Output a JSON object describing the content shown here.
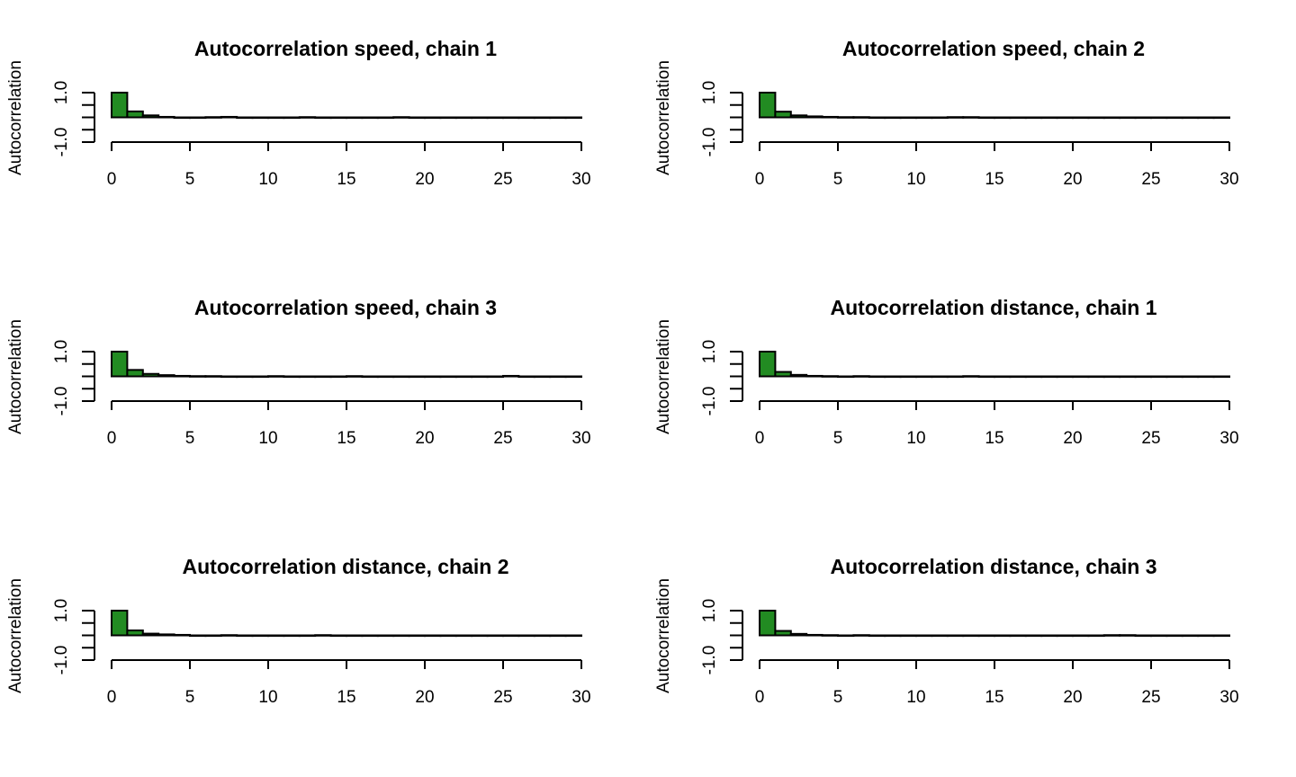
{
  "colors": {
    "bar_fill": "#228b22",
    "stroke": "#000000",
    "background": "#ffffff"
  },
  "chart_data": [
    {
      "type": "bar",
      "title": "Autocorrelation speed, chain 1",
      "xlabel": "",
      "ylabel": "Autocorrelation",
      "xlim": [
        0,
        30
      ],
      "ylim": [
        -1,
        1
      ],
      "xticks": [
        "0",
        "5",
        "10",
        "15",
        "20",
        "25",
        "30"
      ],
      "yticks": [
        "-1.0",
        "1.0"
      ],
      "lags": [
        0,
        1,
        2,
        3,
        4,
        5,
        6,
        7,
        8,
        9,
        10,
        11,
        12,
        13,
        14,
        15,
        16,
        17,
        18,
        19,
        20,
        21,
        22,
        23,
        24,
        25,
        26,
        27,
        28,
        29
      ],
      "values": [
        1.0,
        0.24,
        0.08,
        0.02,
        -0.02,
        0.0,
        0.01,
        0.02,
        0.0,
        -0.01,
        -0.02,
        0.0,
        0.01,
        0.0,
        0.0,
        0.0,
        0.0,
        -0.01,
        0.01,
        0.0,
        -0.01,
        0.0,
        0.0,
        -0.01,
        0.0,
        0.0,
        -0.01,
        0.0,
        0.0,
        0.0
      ]
    },
    {
      "type": "bar",
      "title": "Autocorrelation speed, chain 2",
      "xlabel": "",
      "ylabel": "Autocorrelation",
      "xlim": [
        0,
        30
      ],
      "ylim": [
        -1,
        1
      ],
      "xticks": [
        "0",
        "5",
        "10",
        "15",
        "20",
        "25",
        "30"
      ],
      "yticks": [
        "-1.0",
        "1.0"
      ],
      "lags": [
        0,
        1,
        2,
        3,
        4,
        5,
        6,
        7,
        8,
        9,
        10,
        11,
        12,
        13,
        14,
        15,
        16,
        17,
        18,
        19,
        20,
        21,
        22,
        23,
        24,
        25,
        26,
        27,
        28,
        29
      ],
      "values": [
        1.0,
        0.23,
        0.08,
        0.04,
        0.02,
        0.01,
        0.01,
        0.0,
        -0.01,
        -0.02,
        -0.01,
        0.0,
        0.01,
        0.01,
        0.0,
        0.0,
        0.0,
        0.0,
        0.0,
        0.0,
        0.0,
        0.0,
        0.0,
        0.0,
        0.0,
        0.0,
        0.0,
        0.0,
        -0.01,
        0.0
      ]
    },
    {
      "type": "bar",
      "title": "Autocorrelation speed, chain 3",
      "xlabel": "",
      "ylabel": "Autocorrelation",
      "xlim": [
        0,
        30
      ],
      "ylim": [
        -1,
        1
      ],
      "xticks": [
        "0",
        "5",
        "10",
        "15",
        "20",
        "25",
        "30"
      ],
      "yticks": [
        "-1.0",
        "1.0"
      ],
      "lags": [
        0,
        1,
        2,
        3,
        4,
        5,
        6,
        7,
        8,
        9,
        10,
        11,
        12,
        13,
        14,
        15,
        16,
        17,
        18,
        19,
        20,
        21,
        22,
        23,
        24,
        25,
        26,
        27,
        28,
        29
      ],
      "values": [
        1.0,
        0.26,
        0.1,
        0.05,
        0.02,
        0.01,
        0.01,
        0.0,
        0.0,
        0.0,
        0.01,
        0.0,
        0.0,
        0.0,
        0.0,
        0.01,
        -0.01,
        0.0,
        -0.01,
        0.0,
        0.0,
        -0.01,
        0.0,
        0.0,
        0.0,
        0.02,
        -0.01,
        -0.01,
        0.0,
        0.0
      ]
    },
    {
      "type": "bar",
      "title": "Autocorrelation distance, chain 1",
      "xlabel": "",
      "ylabel": "Autocorrelation",
      "xlim": [
        0,
        30
      ],
      "ylim": [
        -1,
        1
      ],
      "xticks": [
        "0",
        "5",
        "10",
        "15",
        "20",
        "25",
        "30"
      ],
      "yticks": [
        "-1.0",
        "1.0"
      ],
      "lags": [
        0,
        1,
        2,
        3,
        4,
        5,
        6,
        7,
        8,
        9,
        10,
        11,
        12,
        13,
        14,
        15,
        16,
        17,
        18,
        19,
        20,
        21,
        22,
        23,
        24,
        25,
        26,
        27,
        28,
        29
      ],
      "values": [
        1.0,
        0.18,
        0.06,
        0.02,
        0.01,
        0.0,
        0.01,
        0.0,
        0.0,
        0.0,
        -0.01,
        0.0,
        0.0,
        0.01,
        0.0,
        0.0,
        0.0,
        -0.01,
        0.0,
        0.0,
        -0.01,
        0.0,
        0.0,
        0.0,
        -0.01,
        0.0,
        0.0,
        0.0,
        -0.01,
        0.0
      ]
    },
    {
      "type": "bar",
      "title": "Autocorrelation distance, chain 2",
      "xlabel": "",
      "ylabel": "Autocorrelation",
      "xlim": [
        0,
        30
      ],
      "ylim": [
        -1,
        1
      ],
      "xticks": [
        "0",
        "5",
        "10",
        "15",
        "20",
        "25",
        "30"
      ],
      "yticks": [
        "-1.0",
        "1.0"
      ],
      "lags": [
        0,
        1,
        2,
        3,
        4,
        5,
        6,
        7,
        8,
        9,
        10,
        11,
        12,
        13,
        14,
        15,
        16,
        17,
        18,
        19,
        20,
        21,
        22,
        23,
        24,
        25,
        26,
        27,
        28,
        29
      ],
      "values": [
        1.0,
        0.2,
        0.07,
        0.04,
        0.02,
        0.0,
        0.0,
        0.01,
        0.0,
        0.0,
        0.0,
        0.0,
        0.0,
        0.01,
        0.0,
        0.0,
        0.0,
        0.0,
        -0.02,
        0.0,
        0.0,
        -0.01,
        0.0,
        0.0,
        0.0,
        0.0,
        -0.01,
        0.0,
        0.0,
        0.0
      ]
    },
    {
      "type": "bar",
      "title": "Autocorrelation distance, chain 3",
      "xlabel": "",
      "ylabel": "Autocorrelation",
      "xlim": [
        0,
        30
      ],
      "ylim": [
        -1,
        1
      ],
      "xticks": [
        "0",
        "5",
        "10",
        "15",
        "20",
        "25",
        "30"
      ],
      "yticks": [
        "-1.0",
        "1.0"
      ],
      "lags": [
        0,
        1,
        2,
        3,
        4,
        5,
        6,
        7,
        8,
        9,
        10,
        11,
        12,
        13,
        14,
        15,
        16,
        17,
        18,
        19,
        20,
        21,
        22,
        23,
        24,
        25,
        26,
        27,
        28,
        29
      ],
      "values": [
        1.0,
        0.18,
        0.06,
        0.02,
        0.01,
        0.0,
        0.01,
        0.0,
        0.0,
        0.0,
        0.0,
        0.0,
        0.0,
        0.0,
        0.0,
        0.0,
        0.0,
        0.0,
        0.0,
        0.0,
        -0.01,
        0.0,
        0.01,
        0.01,
        0.0,
        0.0,
        0.0,
        0.0,
        0.0,
        -0.01
      ]
    }
  ]
}
